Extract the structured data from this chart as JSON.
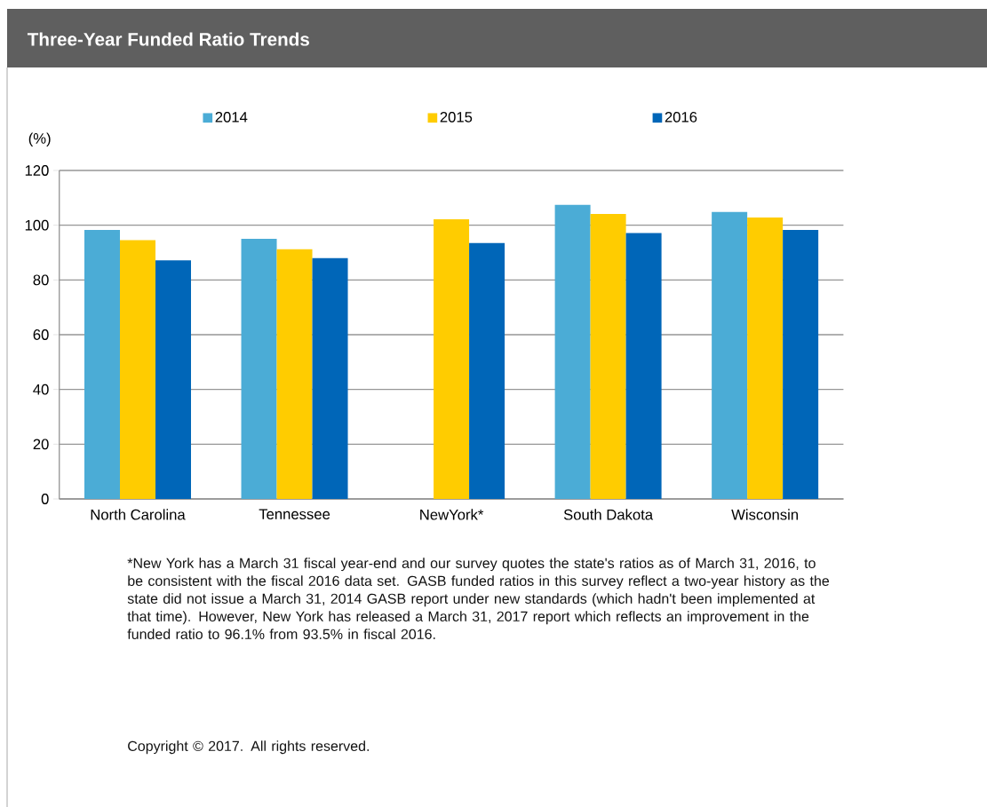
{
  "chart_data": {
    "type": "bar",
    "title": "Three-Year Funded Ratio Trends",
    "ylabel": "(%)",
    "categories": [
      "North Carolina",
      "Tennessee",
      "NewYork*",
      "South Dakota",
      "Wisconsin"
    ],
    "series": [
      {
        "name": "2014",
        "color": "#4bacd6",
        "values": [
          98.3,
          95.0,
          null,
          107.4,
          104.8
        ]
      },
      {
        "name": "2015",
        "color": "#ffcc00",
        "values": [
          94.5,
          91.2,
          102.2,
          104.1,
          102.8
        ]
      },
      {
        "name": "2016",
        "color": "#0066b8",
        "values": [
          87.2,
          88.0,
          93.5,
          97.1,
          98.3
        ]
      }
    ],
    "ylim": [
      0,
      120
    ],
    "yticks": [
      0,
      20,
      40,
      60,
      80,
      100,
      120
    ],
    "grid": "y",
    "legend": "top",
    "annotations": [
      "*New York has a March 31 fiscal year-end and our survey quotes the state's ratios as of March 31, 2016, to be consistent with the fiscal 2016 data set. GASB funded ratios in this survey reflect a two-year history as the state did not issue a March 31, 2014 GASB report under new standards (which hadn't been implemented at that time). However, New York has released a March 31, 2017 report which reflects an improvement in the funded ratio to 96.1% from 93.5% in fiscal 2016.",
      "Copyright © 2017. All rights reserved."
    ]
  }
}
